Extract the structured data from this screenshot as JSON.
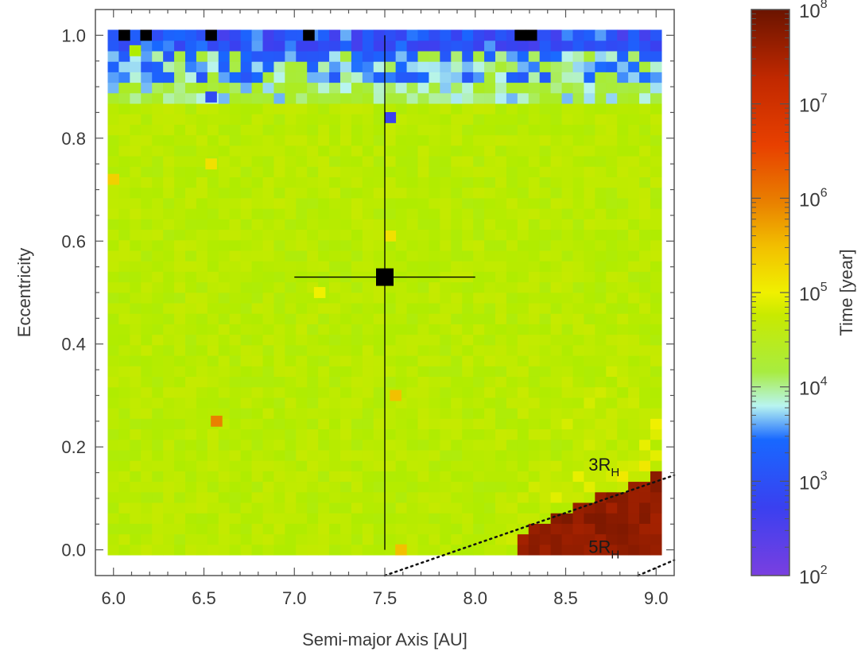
{
  "chart_data": {
    "type": "heatmap",
    "xlabel": "Semi-major Axis [AU]",
    "ylabel": "Eccentricity",
    "xlim": [
      5.9,
      9.1
    ],
    "ylim": [
      -0.05,
      1.05
    ],
    "x_ticks": [
      "6.0",
      "6.5",
      "7.0",
      "7.5",
      "8.0",
      "8.5",
      "9.0"
    ],
    "y_ticks": [
      "0.0",
      "0.2",
      "0.4",
      "0.6",
      "0.8",
      "1.0"
    ],
    "grid": {
      "x_start": 6.0,
      "x_end": 9.0,
      "x_bins": 50,
      "y_start": 0.0,
      "y_end": 1.0,
      "y_bins": 50
    },
    "colorbar": {
      "label": "Time [year]",
      "scale": "log",
      "range": [
        100,
        100000000
      ],
      "tick_labels": [
        {
          "base": "10",
          "exp": "2",
          "value": 100
        },
        {
          "base": "10",
          "exp": "3",
          "value": 1000
        },
        {
          "base": "10",
          "exp": "4",
          "value": 10000
        },
        {
          "base": "10",
          "exp": "5",
          "value": 100000
        },
        {
          "base": "10",
          "exp": "6",
          "value": 1000000
        },
        {
          "base": "10",
          "exp": "7",
          "value": 10000000
        },
        {
          "base": "10",
          "exp": "8",
          "value": 100000000
        }
      ]
    },
    "background_log_time": 3.7,
    "marker": {
      "x": 7.5,
      "y": 0.53,
      "x_err": [
        7.0,
        8.0
      ],
      "y_err": [
        0.0,
        1.0
      ]
    },
    "stability_lines": [
      {
        "label": "3R",
        "sub": "H",
        "x1": 7.5,
        "y1": -0.05,
        "x2": 9.1,
        "y2": 0.145,
        "label_x": 8.6,
        "label_y": 0.16
      },
      {
        "label": "5R",
        "sub": "H",
        "x1": 8.9,
        "y1": -0.05,
        "x2": 9.1,
        "y2": -0.02,
        "label_x": 8.6,
        "label_y": 0.0
      }
    ],
    "black_cells": [
      {
        "x": 6.06,
        "y": 1.0
      },
      {
        "x": 6.18,
        "y": 1.0
      },
      {
        "x": 6.54,
        "y": 1.0
      },
      {
        "x": 7.08,
        "y": 1.0
      },
      {
        "x": 8.25,
        "y": 1.0
      },
      {
        "x": 8.31,
        "y": 1.0
      }
    ],
    "hot_cells": [
      {
        "x": 6.0,
        "y": 0.72,
        "t": 4.3
      },
      {
        "x": 6.54,
        "y": 0.75,
        "t": 4.2
      },
      {
        "x": 6.57,
        "y": 0.25,
        "t": 4.8
      },
      {
        "x": 7.59,
        "y": 0.0,
        "t": 4.4
      },
      {
        "x": 7.56,
        "y": 0.3,
        "t": 4.4
      },
      {
        "x": 7.14,
        "y": 0.5,
        "t": 4.1
      },
      {
        "x": 7.53,
        "y": 0.61,
        "t": 4.2
      },
      {
        "x": 6.12,
        "y": 0.97,
        "t": 3.6
      },
      {
        "x": 7.53,
        "y": 0.84,
        "t": 2.4
      },
      {
        "x": 6.54,
        "y": 0.88,
        "t": 2.5
      }
    ]
  }
}
